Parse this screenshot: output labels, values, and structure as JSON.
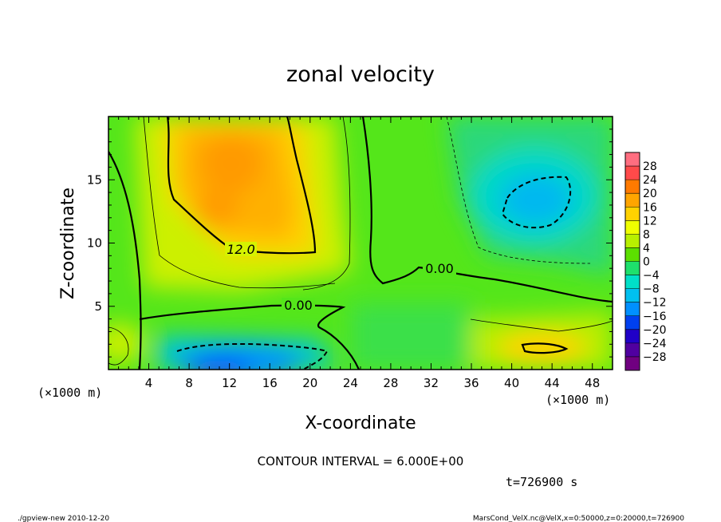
{
  "chart_data": {
    "type": "heatmap",
    "title": "zonal velocity",
    "xlabel": "X-coordinate",
    "ylabel": "Z-coordinate",
    "x_unit": "(×1000 m)",
    "y_unit": "(×1000 m)",
    "xlim": [
      0,
      50
    ],
    "ylim": [
      0,
      20
    ],
    "x_ticks": [
      4,
      8,
      12,
      16,
      20,
      24,
      28,
      32,
      36,
      40,
      44,
      48
    ],
    "y_ticks": [
      5,
      10,
      15
    ],
    "colorbar": {
      "labels": [
        "28",
        "24",
        "20",
        "16",
        "12",
        "8",
        "4",
        "0",
        "−4",
        "−8",
        "−12",
        "−16",
        "−20",
        "−24",
        "−28"
      ],
      "colors": [
        "#ff6e80",
        "#ff4a4a",
        "#ff7a00",
        "#ffa500",
        "#ffd200",
        "#f0ff00",
        "#b8f000",
        "#5ce000",
        "#1ee06c",
        "#00e0c8",
        "#00c0f0",
        "#0090ff",
        "#0040f0",
        "#2000c8",
        "#5000a0",
        "#700080"
      ]
    },
    "contour_labels": [
      {
        "text": "12.0",
        "x": 16.5,
        "z": 9.5
      },
      {
        "text": "0.00",
        "x": 18.5,
        "z": 5.0
      },
      {
        "text": "0.00",
        "x": 32.0,
        "z": 7.8
      }
    ],
    "footer": {
      "interval": "CONTOUR INTERVAL = 6.000E+00",
      "time": "t=726900 s",
      "program": "./gpview-new  2010-12-20",
      "source": "MarsCond_VelX.nc@VelX,x=0:50000,z=0:20000,t=726900"
    }
  }
}
